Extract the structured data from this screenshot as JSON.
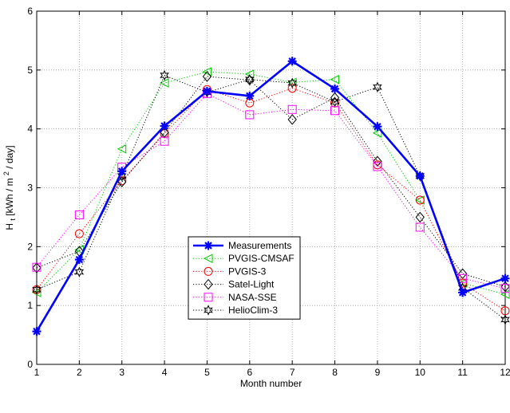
{
  "chart_data": {
    "type": "line",
    "title": "",
    "xlabel": "Month number",
    "ylabel": {
      "prefix": "H",
      "sub": "t",
      "middle": " [kWh / m",
      "sup": "2",
      "suffix": " / day]"
    },
    "xlim": [
      1,
      12
    ],
    "ylim": [
      0,
      6
    ],
    "xticks": [
      1,
      2,
      3,
      4,
      5,
      6,
      7,
      8,
      9,
      10,
      11,
      12
    ],
    "yticks": [
      0,
      1,
      2,
      3,
      4,
      5,
      6
    ],
    "grid": true,
    "legend_position": "lower-center",
    "x": [
      1,
      2,
      3,
      4,
      5,
      6,
      7,
      8,
      9,
      10,
      11,
      12
    ],
    "series": [
      {
        "name": "Measurements",
        "color": "#0000ff",
        "line": "solid",
        "marker": "asterisk",
        "values": [
          0.56,
          1.78,
          3.28,
          4.05,
          4.64,
          4.56,
          5.15,
          4.68,
          4.04,
          3.2,
          1.22,
          1.46
        ]
      },
      {
        "name": "PVGIS-CMSAF",
        "color": "#00cc00",
        "line": "dotted",
        "marker": "triangle-left",
        "values": [
          1.22,
          1.95,
          3.66,
          4.78,
          4.97,
          4.93,
          4.79,
          4.84,
          3.93,
          2.79,
          1.38,
          1.19
        ]
      },
      {
        "name": "PVGIS-3",
        "color": "#ff0000",
        "line": "dotted",
        "marker": "circle",
        "values": [
          1.27,
          2.22,
          3.12,
          3.92,
          4.67,
          4.44,
          4.69,
          4.44,
          3.39,
          2.79,
          1.38,
          0.91
        ]
      },
      {
        "name": "Satel-Light",
        "color": "#000000",
        "line": "dotted",
        "marker": "diamond",
        "values": [
          1.64,
          1.92,
          3.1,
          3.94,
          4.89,
          4.83,
          4.16,
          4.53,
          3.45,
          2.5,
          1.54,
          1.32
        ]
      },
      {
        "name": "NASA-SSE",
        "color": "#ff00ff",
        "line": "dotted",
        "marker": "square",
        "values": [
          1.65,
          2.54,
          3.35,
          3.79,
          4.6,
          4.24,
          4.33,
          4.31,
          3.36,
          2.33,
          1.46,
          1.29
        ]
      },
      {
        "name": "HelioClim-3",
        "color": "#000000",
        "line": "dotted",
        "marker": "hexagram",
        "values": [
          1.27,
          1.57,
          3.2,
          4.91,
          4.62,
          4.84,
          4.78,
          4.46,
          4.71,
          3.2,
          1.3,
          0.76
        ]
      }
    ]
  }
}
